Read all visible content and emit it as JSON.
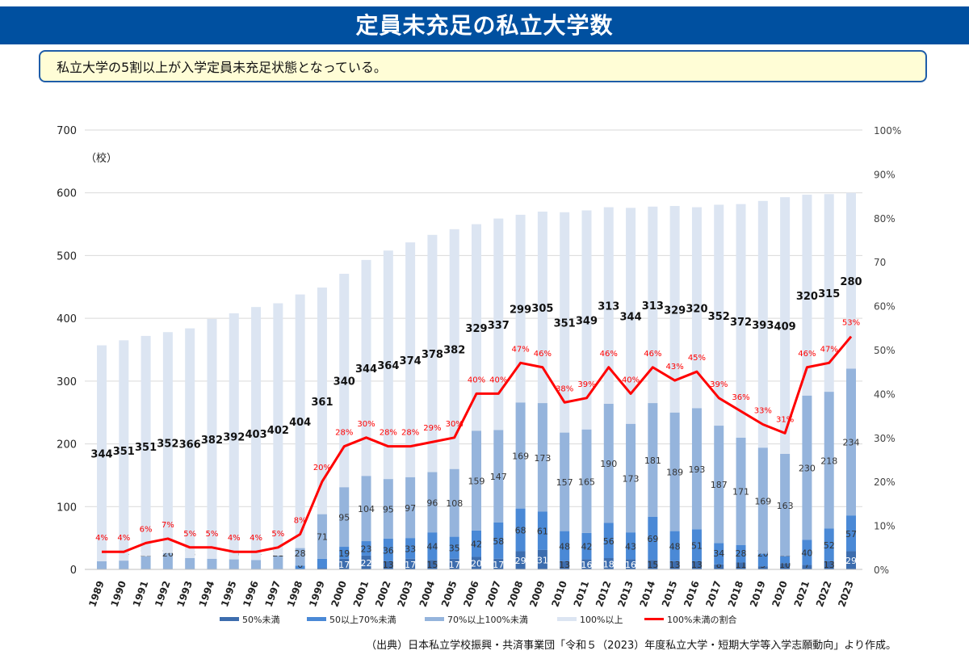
{
  "header": {
    "title": "定員未充足の私立大学数"
  },
  "message": "私立大学の5割以上が入学定員未充足状態となっている。",
  "source": "（出典）日本私立学校振興・共済事業団「令和５（2023）年度私立大学・短期大学等入学志願動向」より作成。",
  "chart_data": {
    "type": "bar",
    "stacked": true,
    "ylabel": "（校）",
    "ylim": [
      0,
      700
    ],
    "yticks": [
      "0",
      "100",
      "200",
      "300",
      "400",
      "500",
      "600",
      "700"
    ],
    "y2lim": [
      0,
      100
    ],
    "y2ticks": [
      "0%",
      "10%",
      "20%",
      "30%",
      "40%",
      "50%",
      "60%",
      "70",
      "80%",
      "90%",
      "100%"
    ],
    "grid": true,
    "legend_position": "bottom",
    "categories": [
      "1989",
      "1990",
      "1991",
      "1992",
      "1993",
      "1994",
      "1995",
      "1996",
      "1997",
      "1998",
      "1999",
      "2000",
      "2001",
      "2002",
      "2003",
      "2004",
      "2005",
      "2006",
      "2007",
      "2008",
      "2009",
      "2010",
      "2011",
      "2012",
      "2013",
      "2014",
      "2015",
      "2016",
      "2017",
      "2018",
      "2019",
      "2020",
      "2021",
      "2022",
      "2023"
    ],
    "series": [
      {
        "name": "50%未満",
        "color": "#3D6DAE",
        "values": [
          0,
          0,
          0,
          0,
          0,
          0,
          0,
          0,
          0,
          0,
          2,
          17,
          22,
          13,
          17,
          15,
          17,
          20,
          17,
          29,
          31,
          13,
          16,
          18,
          16,
          15,
          13,
          13,
          8,
          11,
          5,
          10,
          7,
          13,
          29
        ]
      },
      {
        "name": "50以上70%未満",
        "color": "#4A89D6",
        "values": [
          0,
          0,
          0,
          0,
          0,
          0,
          0,
          1,
          1,
          6,
          15,
          19,
          23,
          36,
          33,
          44,
          35,
          42,
          58,
          68,
          61,
          48,
          42,
          56,
          43,
          69,
          48,
          51,
          34,
          28,
          20,
          11,
          40,
          52,
          57
        ]
      },
      {
        "name": "70%以上100%未満",
        "color": "#95B4DC",
        "values": [
          13,
          14,
          21,
          26,
          18,
          17,
          16,
          14,
          21,
          28,
          71,
          95,
          104,
          95,
          97,
          96,
          108,
          159,
          147,
          169,
          173,
          157,
          165,
          190,
          173,
          181,
          189,
          193,
          187,
          171,
          169,
          163,
          230,
          218,
          234
        ]
      },
      {
        "name": "100%以上",
        "color": "#DCE5F2",
        "values": [
          344,
          351,
          351,
          352,
          366,
          382,
          392,
          403,
          402,
          404,
          361,
          340,
          344,
          364,
          374,
          378,
          382,
          329,
          337,
          299,
          305,
          351,
          349,
          313,
          344,
          313,
          329,
          320,
          352,
          372,
          393,
          409,
          320,
          315,
          280
        ]
      },
      {
        "name": "100%未満の割合",
        "type": "line",
        "axis": "right",
        "color": "#FF0000",
        "values": [
          4,
          4,
          6,
          7,
          5,
          5,
          4,
          4,
          5,
          8,
          20,
          28,
          30,
          28,
          28,
          29,
          30,
          40,
          40,
          47,
          46,
          38,
          39,
          46,
          40,
          46,
          43,
          45,
          39,
          36,
          33,
          31,
          46,
          47,
          53
        ]
      }
    ]
  }
}
